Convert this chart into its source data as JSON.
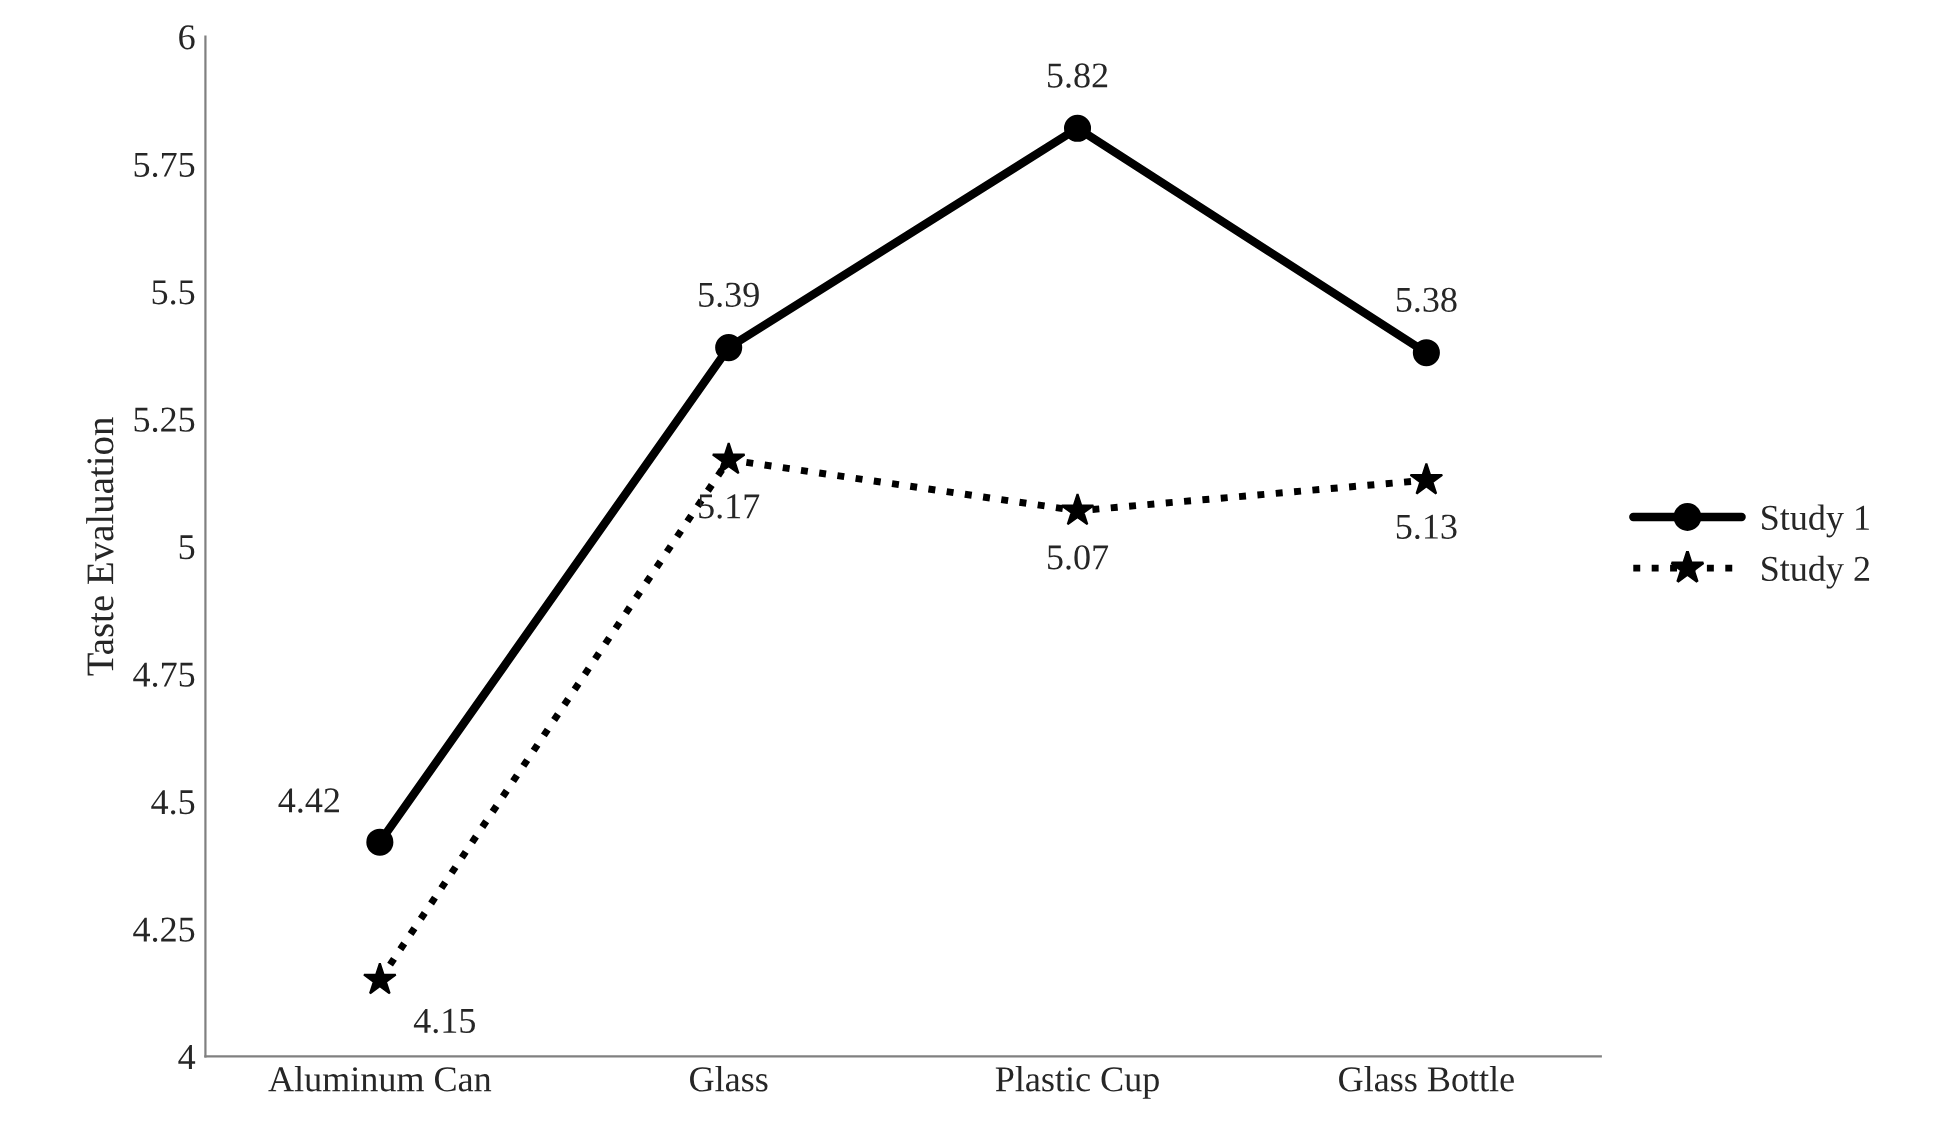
{
  "chart_data": {
    "type": "line",
    "ylabel": "Taste Evaluation",
    "categories": [
      "Aluminum Can",
      "Glass",
      "Plastic Cup",
      "Glass Bottle"
    ],
    "series": [
      {
        "name": "Study 1",
        "color": "#000000",
        "values": [
          4.42,
          5.39,
          5.82,
          5.38
        ],
        "marker": "circle",
        "line_style": "solid"
      },
      {
        "name": "Study 2",
        "color": "#000000",
        "values": [
          4.15,
          5.17,
          5.07,
          5.13
        ],
        "marker": "star",
        "line_style": "dotted"
      }
    ],
    "ylim": [
      4,
      6
    ],
    "yticks": [
      4,
      4.25,
      4.5,
      4.75,
      5,
      5.25,
      5.5,
      5.75,
      6
    ],
    "data_labels": true,
    "grid": false,
    "legend": "right"
  }
}
